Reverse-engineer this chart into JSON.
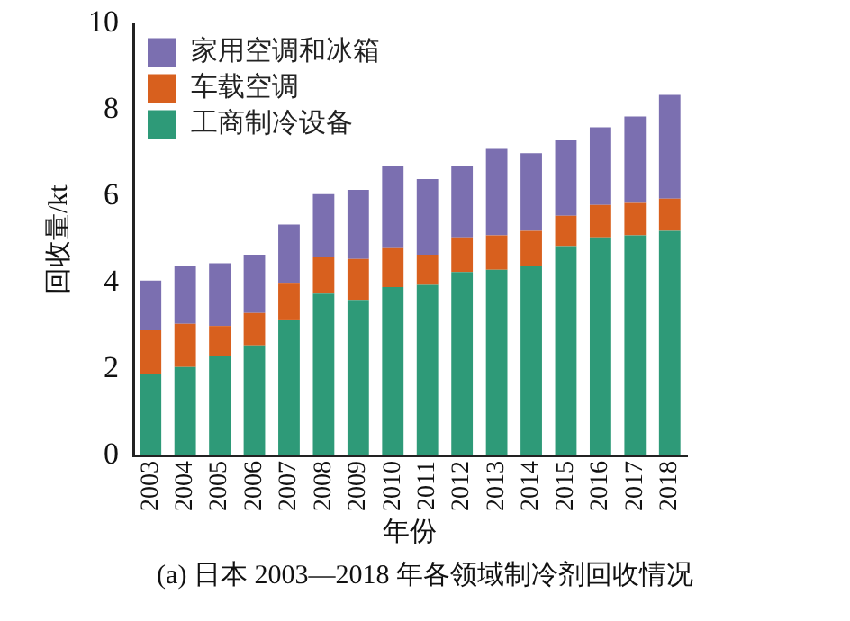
{
  "chart_data": {
    "type": "bar",
    "stacked": true,
    "xlabel": "年份",
    "ylabel": "回收量/kt",
    "categories": [
      "2003",
      "2004",
      "2005",
      "2006",
      "2007",
      "2008",
      "2009",
      "2010",
      "2011",
      "2012",
      "2013",
      "2014",
      "2015",
      "2016",
      "2017",
      "2018"
    ],
    "series": [
      {
        "name": "工商制冷设备",
        "color": "#2e9a78",
        "values": [
          1.9,
          2.05,
          2.3,
          2.55,
          3.15,
          3.75,
          3.6,
          3.9,
          3.95,
          4.25,
          4.3,
          4.4,
          4.85,
          5.05,
          5.1,
          5.2
        ]
      },
      {
        "name": "车载空调",
        "color": "#d8601e",
        "values": [
          1.0,
          1.0,
          0.7,
          0.75,
          0.85,
          0.85,
          0.95,
          0.9,
          0.7,
          0.8,
          0.8,
          0.8,
          0.7,
          0.75,
          0.75,
          0.75
        ]
      },
      {
        "name": "家用空调和冰箱",
        "color": "#7b6fb0",
        "values": [
          1.15,
          1.35,
          1.45,
          1.35,
          1.35,
          1.45,
          1.6,
          1.9,
          1.75,
          1.65,
          2.0,
          1.8,
          1.75,
          1.8,
          2.0,
          2.4
        ]
      }
    ],
    "ylim": [
      0,
      10
    ],
    "yticks": [
      0,
      2,
      4,
      6,
      8,
      10
    ],
    "grid": false,
    "legend": "top left",
    "annotations": [
      "(a) 日本 2003—2018 年各领域制冷剂回收情况"
    ]
  }
}
